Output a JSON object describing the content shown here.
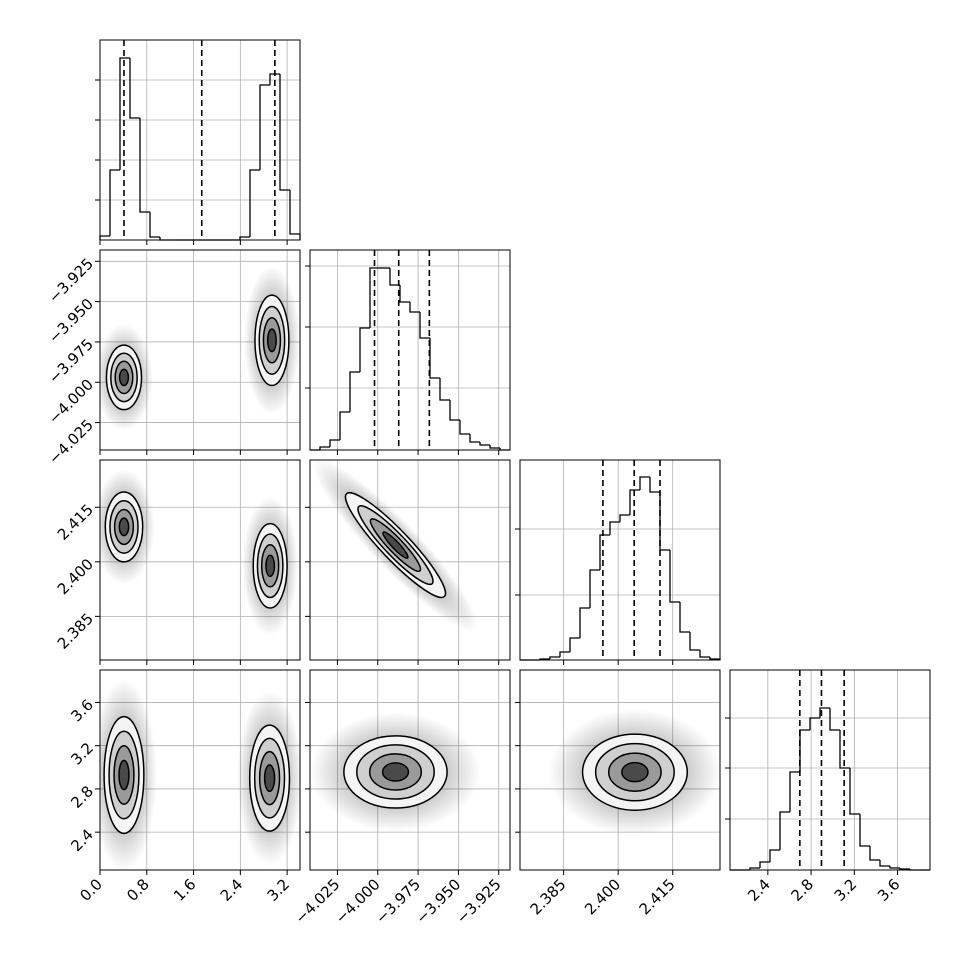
{
  "chart_data": {
    "type": "corner",
    "color": "#000000",
    "grid": true,
    "levels": [
      0.5,
      1,
      1.5,
      2
    ],
    "params": [
      {
        "lim": [
          0,
          3.42
        ],
        "ticks": [
          {
            "value": 0,
            "label": "0.0"
          },
          0.8,
          1.6,
          2.4,
          3.2
        ]
      },
      {
        "lim": [
          -4.042,
          -3.918
        ],
        "ticks": [
          {
            "value": -4.025,
            "label": "−4.025"
          },
          {
            "value": -4,
            "label": "−4.000"
          },
          {
            "value": -3.975,
            "label": "−3.975"
          },
          {
            "value": -3.95,
            "label": "−3.950"
          },
          {
            "value": -3.925,
            "label": "−3.925"
          }
        ]
      },
      {
        "lim": [
          2.373,
          2.428
        ],
        "ticks": [
          2.385,
          {
            "value": 2.4,
            "label": "2.400"
          },
          2.415
        ]
      },
      {
        "lim": [
          2.05,
          3.9
        ],
        "ticks": [
          2.4,
          2.8,
          3.2,
          3.6
        ]
      }
    ],
    "diagonal": [
      {
        "bins": [
          0,
          0.171,
          0.342,
          0.513,
          0.684,
          0.855,
          1.026,
          1.197,
          1.368,
          1.539,
          1.71,
          1.881,
          2.052,
          2.223,
          2.394,
          2.565,
          2.736,
          2.907,
          3.078,
          3.249,
          3.42
        ],
        "counts": [
          4,
          70,
          182,
          122,
          28,
          3,
          0,
          0,
          0,
          0,
          0,
          0,
          0,
          0,
          3,
          70,
          155,
          166,
          50,
          6
        ],
        "ylim": [
          0,
          200
        ],
        "yticks": [
          40,
          80,
          120,
          160
        ],
        "quantiles": [
          0.41,
          1.74,
          2.99
        ]
      },
      {
        "bins": [
          -4.042,
          -4.0358,
          -4.0296,
          -4.0234,
          -4.0172,
          -4.011,
          -4.0048,
          -3.9986,
          -3.9924,
          -3.9862,
          -3.98,
          -3.9738,
          -3.9676,
          -3.9614,
          -3.9552,
          -3.949,
          -3.9428,
          -3.9366,
          -3.9304,
          -3.9242,
          -3.918
        ],
        "counts": [
          0,
          3,
          10,
          38,
          78,
          122,
          182,
          182,
          165,
          148,
          138,
          112,
          72,
          50,
          30,
          16,
          8,
          5,
          2,
          0
        ],
        "ylim": [
          0,
          200
        ],
        "yticks": [
          62,
          123,
          184
        ],
        "quantiles": [
          -4.002,
          -3.987,
          -3.968
        ]
      },
      {
        "bins": [
          2.373,
          2.37575,
          2.3785,
          2.38125,
          2.384,
          2.38675,
          2.3895,
          2.39225,
          2.395,
          2.39775,
          2.4005,
          2.40325,
          2.406,
          2.40875,
          2.4115,
          2.41425,
          2.417,
          2.41975,
          2.4225,
          2.42525,
          2.428
        ],
        "counts": [
          0,
          0,
          1,
          3,
          8,
          22,
          52,
          90,
          125,
          138,
          145,
          170,
          183,
          168,
          110,
          58,
          28,
          10,
          3,
          1
        ],
        "ylim": [
          0,
          200
        ],
        "yticks": [
          65,
          131
        ],
        "quantiles": [
          2.3958,
          2.4044,
          2.4115
        ]
      },
      {
        "bins": [
          2.05,
          2.1425,
          2.235,
          2.3275,
          2.42,
          2.5125,
          2.605,
          2.6975,
          2.79,
          2.8825,
          2.975,
          3.0675,
          3.16,
          3.2525,
          3.345,
          3.4375,
          3.53,
          3.6225,
          3.715,
          3.8075,
          3.9
        ],
        "counts": [
          0,
          0,
          2,
          8,
          20,
          58,
          98,
          140,
          152,
          162,
          140,
          102,
          56,
          24,
          10,
          4,
          2,
          1,
          0,
          0
        ],
        "ylim": [
          0,
          200
        ],
        "yticks": [
          51,
          102,
          152
        ],
        "quantiles": [
          2.696,
          2.896,
          3.106
        ]
      }
    ],
    "pairs": [
      [],
      [
        {
          "blobs": [
            {
              "center": [
                0.41,
                -3.997
              ],
              "sx": 0.15,
              "sy": 0.01,
              "rho": 0
            },
            {
              "center": [
                2.94,
                -3.974
              ],
              "sx": 0.145,
              "sy": 0.014,
              "rho": 0
            }
          ]
        }
      ],
      [
        {
          "blobs": [
            {
              "center": [
                0.41,
                2.4096
              ],
              "sx": 0.16,
              "sy": 0.0048,
              "rho": 0
            },
            {
              "center": [
                2.91,
                2.3989
              ],
              "sx": 0.145,
              "sy": 0.0058,
              "rho": 0
            }
          ]
        },
        {
          "blobs": [
            {
              "center": [
                -3.989,
                2.4046
              ],
              "sx": 0.0155,
              "sy": 0.0072,
              "rho": -0.92
            }
          ]
        }
      ],
      [
        {
          "blobs": [
            {
              "center": [
                0.41,
                2.929
              ],
              "sx": 0.17,
              "sy": 0.27,
              "rho": 0
            },
            {
              "center": [
                2.9,
                2.9
              ],
              "sx": 0.17,
              "sy": 0.245,
              "rho": 0
            }
          ]
        },
        {
          "blobs": [
            {
              "center": [
                -3.989,
                2.957
              ],
              "sx": 0.016,
              "sy": 0.167,
              "rho": 0
            }
          ]
        },
        {
          "blobs": [
            {
              "center": [
                2.4046,
                2.955
              ],
              "sx": 0.0072,
              "sy": 0.176,
              "rho": 0
            }
          ]
        }
      ]
    ]
  }
}
